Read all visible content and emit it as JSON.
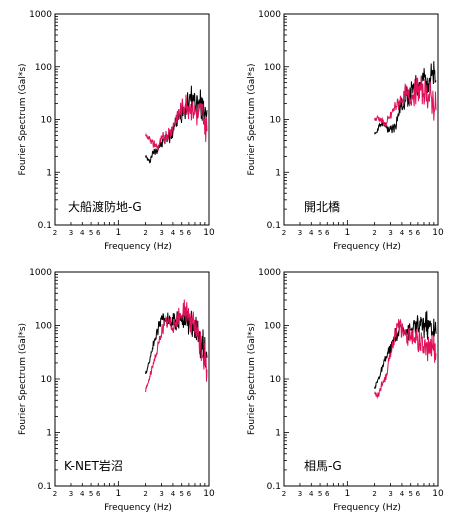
{
  "colors": {
    "series_1": "#000000",
    "series_2": "#e0105a"
  },
  "chart_data": [
    {
      "type": "line",
      "xlabel": "Frequency (Hz)",
      "ylabel": "Fourier Spectrum (Gal*s)",
      "xscale": "log",
      "yscale": "log",
      "xlim": [
        2,
        10
      ],
      "ylim": [
        0.1,
        1000
      ],
      "station": "大船渡防地-G",
      "x": [
        2.0,
        2.2,
        2.4,
        2.7,
        3.0,
        3.4,
        3.8,
        4.3,
        4.8,
        5.4,
        6.0,
        6.8,
        7.6,
        8.5,
        9.5
      ],
      "series": [
        {
          "values": [
            2.0,
            1.6,
            2.3,
            2.8,
            3.5,
            4.5,
            5.5,
            8,
            12,
            18,
            22,
            25,
            20,
            18,
            15
          ]
        },
        {
          "values": [
            5,
            4.5,
            3.5,
            3.0,
            4.0,
            5,
            6,
            10,
            14,
            20,
            18,
            16,
            12,
            14,
            6
          ]
        }
      ]
    },
    {
      "type": "line",
      "xlabel": "Frequency (Hz)",
      "ylabel": "Fourier Spectrum (Gal*s)",
      "xscale": "log",
      "yscale": "log",
      "xlim": [
        2,
        10
      ],
      "ylim": [
        0.1,
        1000
      ],
      "station": "開北橋",
      "x": [
        2.0,
        2.2,
        2.4,
        2.7,
        3.0,
        3.4,
        3.8,
        4.3,
        4.8,
        5.4,
        6.0,
        6.8,
        7.6,
        8.5,
        9.5
      ],
      "series": [
        {
          "values": [
            5,
            7,
            9,
            7,
            6,
            8,
            15,
            25,
            30,
            35,
            45,
            55,
            65,
            60,
            55
          ]
        },
        {
          "values": [
            10,
            11,
            9,
            8,
            12,
            18,
            22,
            30,
            25,
            30,
            40,
            35,
            30,
            25,
            15
          ]
        }
      ]
    },
    {
      "type": "line",
      "xlabel": "Frequency (Hz)",
      "ylabel": "Fourier Spectrum (Gal*s)",
      "xscale": "log",
      "yscale": "log",
      "xlim": [
        2,
        10
      ],
      "ylim": [
        0.1,
        1000
      ],
      "station": "K-NET岩沼",
      "x": [
        2.0,
        2.2,
        2.4,
        2.7,
        3.0,
        3.4,
        3.8,
        4.3,
        4.8,
        5.4,
        6.0,
        6.8,
        7.6,
        8.5,
        9.5
      ],
      "series": [
        {
          "values": [
            12,
            22,
            40,
            80,
            140,
            130,
            110,
            120,
            130,
            150,
            120,
            90,
            60,
            40,
            25
          ]
        },
        {
          "values": [
            6,
            10,
            18,
            35,
            80,
            120,
            100,
            110,
            150,
            200,
            150,
            100,
            60,
            30,
            15
          ]
        }
      ]
    },
    {
      "type": "line",
      "xlabel": "Frequency (Hz)",
      "ylabel": "Fourier Spectrum (Gal*s)",
      "xscale": "log",
      "yscale": "log",
      "xlim": [
        2,
        10
      ],
      "ylim": [
        0.1,
        1000
      ],
      "station": "相馬-G",
      "x": [
        2.0,
        2.2,
        2.4,
        2.7,
        3.0,
        3.4,
        3.8,
        4.3,
        4.8,
        5.4,
        6.0,
        6.8,
        7.6,
        8.5,
        9.5
      ],
      "series": [
        {
          "values": [
            7,
            10,
            15,
            25,
            40,
            60,
            80,
            90,
            80,
            90,
            100,
            110,
            100,
            90,
            70
          ]
        },
        {
          "values": [
            5,
            5,
            8,
            12,
            30,
            80,
            100,
            70,
            60,
            70,
            50,
            40,
            35,
            40,
            30
          ]
        }
      ]
    }
  ]
}
